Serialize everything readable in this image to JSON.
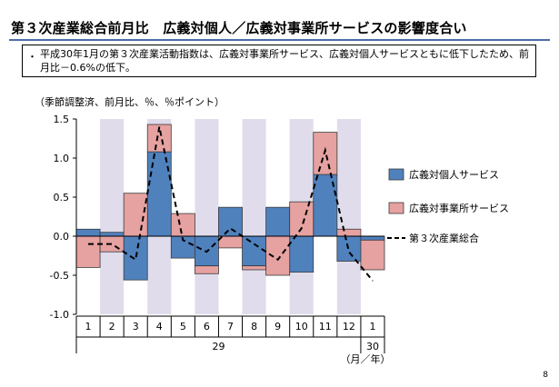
{
  "header": {
    "title": "第３次産業総合前月比　広義対個人／広義対事業所サービスの影響度合い",
    "note_bullet": "・",
    "note": "平成30年1月の第３次産業活動指数は、広義対事業所サービス、広義対個人サービスともに低下したため、前月比－0.6%の低下。"
  },
  "unit_label": "（季節調整済、前月比、％、％ポイント）",
  "page_number": "8",
  "chart_data": {
    "type": "bar",
    "stacked": true,
    "categories": [
      "1",
      "2",
      "3",
      "4",
      "5",
      "6",
      "7",
      "8",
      "9",
      "10",
      "11",
      "12",
      "1"
    ],
    "year_labels": [
      {
        "label": "29",
        "from_index": 0,
        "to_index": 11
      },
      {
        "label": "30",
        "from_index": 12,
        "to_index": 12
      }
    ],
    "axis_unit_label": "（月／年）",
    "ylim": [
      -1.0,
      1.5
    ],
    "yticks": [
      -1.0,
      -0.5,
      0.0,
      0.5,
      1.0,
      1.5
    ],
    "ytick_labels": [
      "-1.0",
      "-0.5",
      "0.0",
      "0.5",
      "1.0",
      "1.5"
    ],
    "shaded_categories": [
      1,
      3,
      5,
      7,
      9,
      11
    ],
    "series": [
      {
        "name": "広義対個人サービス",
        "kind": "bar",
        "color": "#4f81bd",
        "values": [
          0.09,
          0.05,
          -0.56,
          1.08,
          -0.28,
          -0.38,
          0.37,
          -0.38,
          0.37,
          -0.46,
          0.79,
          -0.32,
          -0.05
        ]
      },
      {
        "name": "広義対事業所サービス",
        "kind": "bar",
        "color": "#e6a1a1",
        "values": [
          -0.4,
          -0.2,
          0.55,
          0.35,
          0.29,
          -0.1,
          -0.15,
          -0.05,
          -0.5,
          0.44,
          0.54,
          0.09,
          -0.38
        ]
      },
      {
        "name": "第３次産業総合",
        "kind": "line",
        "color": "#000000",
        "values": [
          -0.1,
          -0.1,
          -0.3,
          1.4,
          -0.05,
          -0.2,
          0.1,
          -0.1,
          -0.3,
          0.1,
          1.1,
          -0.2,
          -0.57
        ]
      }
    ],
    "colors": {
      "shade": "#e0dcec",
      "bar_edge": "#3a3a3a"
    },
    "legend": {
      "placement": "right"
    }
  }
}
